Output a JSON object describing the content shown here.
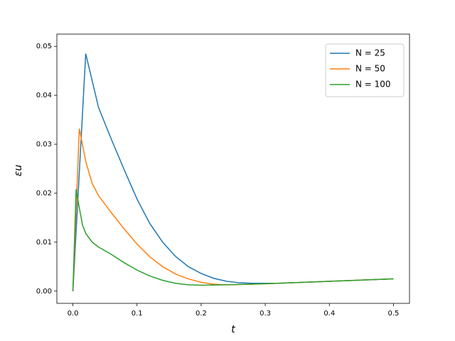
{
  "chart_data": {
    "type": "line",
    "xlabel": "t",
    "ylabel": "εu",
    "xlim": [
      -0.025,
      0.525
    ],
    "ylim": [
      -0.0025,
      0.0525
    ],
    "xticks": [
      {
        "value": 0,
        "label": "0.0"
      },
      {
        "value": 0.1,
        "label": "0.1"
      },
      {
        "value": 0.2,
        "label": "0.2"
      },
      {
        "value": 0.3,
        "label": "0.3"
      },
      {
        "value": 0.4,
        "label": "0.4"
      },
      {
        "value": 0.5,
        "label": "0.5"
      }
    ],
    "yticks": [
      {
        "value": 0,
        "label": "0.00"
      },
      {
        "value": 0.01,
        "label": "0.01"
      },
      {
        "value": 0.02,
        "label": "0.02"
      },
      {
        "value": 0.03,
        "label": "0.03"
      },
      {
        "value": 0.04,
        "label": "0.04"
      },
      {
        "value": 0.05,
        "label": "0.05"
      }
    ],
    "legend": "upper right",
    "series": [
      {
        "name": "N = 25",
        "color": "#1f77b4",
        "x": [
          0,
          0.02,
          0.04,
          0.06,
          0.08,
          0.1,
          0.12,
          0.14,
          0.16,
          0.18,
          0.2,
          0.22,
          0.24,
          0.26,
          0.28,
          0.3,
          0.32,
          0.34,
          0.36,
          0.38,
          0.4,
          0.42,
          0.44,
          0.46,
          0.48,
          0.5
        ],
        "values": [
          0,
          0.0485,
          0.0375,
          0.031,
          0.0248,
          0.0188,
          0.0138,
          0.01,
          0.0071,
          0.005,
          0.0036,
          0.0026,
          0.002,
          0.0017,
          0.0016,
          0.0016,
          0.0016,
          0.0017,
          0.0018,
          0.0019,
          0.002,
          0.0021,
          0.0022,
          0.0023,
          0.0024,
          0.0025
        ]
      },
      {
        "name": "N = 50",
        "color": "#ff7f0e",
        "x": [
          0,
          0.01,
          0.02,
          0.03,
          0.04,
          0.06,
          0.08,
          0.1,
          0.12,
          0.14,
          0.16,
          0.18,
          0.2,
          0.22,
          0.24,
          0.28,
          0.32,
          0.4,
          0.5
        ],
        "values": [
          0,
          0.0332,
          0.0265,
          0.022,
          0.0195,
          0.016,
          0.0127,
          0.0096,
          0.007,
          0.005,
          0.0035,
          0.0025,
          0.0018,
          0.0014,
          0.0013,
          0.0014,
          0.0016,
          0.002,
          0.0025
        ]
      },
      {
        "name": "N = 100",
        "color": "#2ca02c",
        "x": [
          0,
          0.005,
          0.01,
          0.015,
          0.02,
          0.03,
          0.04,
          0.06,
          0.08,
          0.1,
          0.12,
          0.14,
          0.16,
          0.18,
          0.2,
          0.24,
          0.3,
          0.4,
          0.5
        ],
        "values": [
          0,
          0.0208,
          0.017,
          0.0135,
          0.0118,
          0.01,
          0.009,
          0.0075,
          0.0058,
          0.0043,
          0.0031,
          0.0022,
          0.0016,
          0.0013,
          0.0012,
          0.0013,
          0.0015,
          0.002,
          0.0025
        ]
      }
    ]
  }
}
